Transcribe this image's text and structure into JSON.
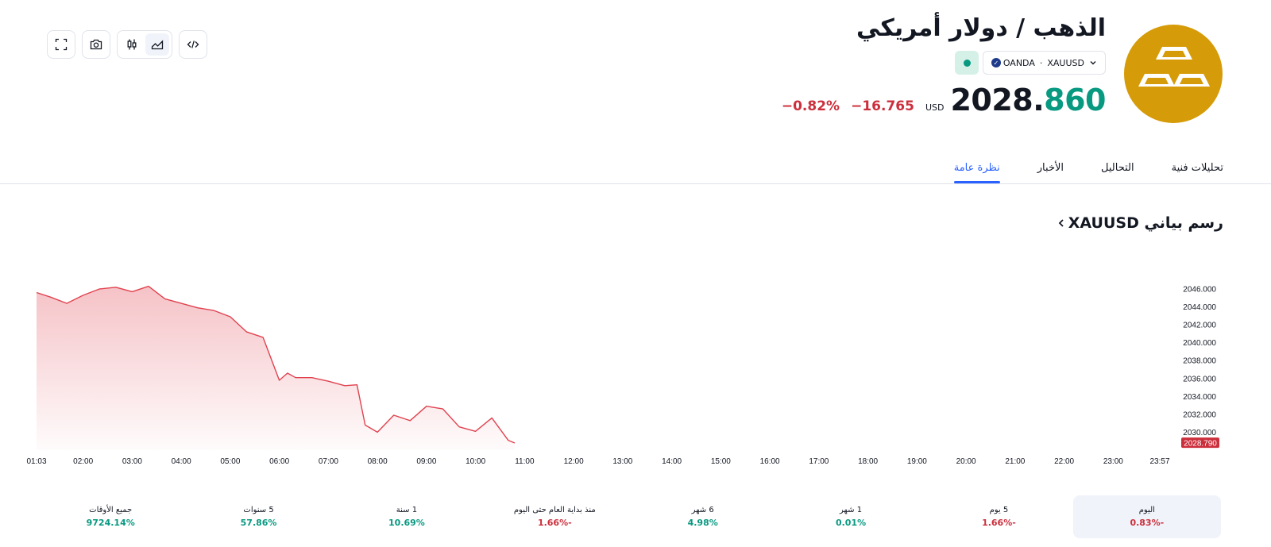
{
  "toolbar": {
    "fullscreen": "fullscreen-icon",
    "screenshot": "camera-icon",
    "candles": "candlestick-icon",
    "area": "area-chart-icon",
    "embed": "code-icon"
  },
  "header": {
    "title": "الذهب / دولار أمريكي",
    "symbol": "XAUUSD",
    "exchange": "OANDA",
    "price_int": "2028.",
    "price_frac": "860",
    "currency": "USD",
    "change_abs": "−16.765",
    "change_pct": "−0.82%",
    "logo_color": "#d69b08"
  },
  "tabs": [
    "نظرة عامة",
    "الأخبار",
    "التحاليل",
    "تحليلات فنية"
  ],
  "section": {
    "title": "رسم بياني XAUUSD"
  },
  "colors": {
    "up": "#089981",
    "down": "#cc2f3c",
    "accent": "#2962ff",
    "line": "#e0424f"
  },
  "chart_data": {
    "type": "area",
    "x_ticks": [
      "01:03",
      "02:00",
      "03:00",
      "04:00",
      "05:00",
      "06:00",
      "07:00",
      "08:00",
      "09:00",
      "10:00",
      "11:00",
      "12:00",
      "13:00",
      "14:00",
      "15:00",
      "16:00",
      "17:00",
      "18:00",
      "19:00",
      "20:00",
      "21:00",
      "22:00",
      "23:00",
      "23:57"
    ],
    "y_ticks": [
      "2046.000",
      "2044.000",
      "2042.000",
      "2040.000",
      "2038.000",
      "2036.000",
      "2034.000",
      "2032.000",
      "2030.000"
    ],
    "ylim": [
      2028.0,
      2046.8
    ],
    "last_price": "2028.790",
    "x": [
      "01:03",
      "01:20",
      "01:40",
      "02:00",
      "02:20",
      "02:40",
      "03:00",
      "03:20",
      "03:40",
      "04:00",
      "04:20",
      "04:40",
      "05:00",
      "05:20",
      "05:40",
      "06:00",
      "06:10",
      "06:20",
      "06:40",
      "07:00",
      "07:20",
      "07:35",
      "07:45",
      "08:00",
      "08:20",
      "08:40",
      "09:00",
      "09:20",
      "09:40",
      "10:00",
      "10:20",
      "10:40",
      "10:48"
    ],
    "values": [
      2045.6,
      2045.1,
      2044.4,
      2045.3,
      2046.0,
      2046.2,
      2045.7,
      2046.3,
      2044.9,
      2044.4,
      2043.9,
      2043.6,
      2042.9,
      2041.2,
      2040.6,
      2035.8,
      2036.6,
      2036.1,
      2036.1,
      2035.7,
      2035.2,
      2035.3,
      2030.8,
      2030.0,
      2031.9,
      2031.3,
      2032.9,
      2032.6,
      2030.6,
      2030.1,
      2031.6,
      2029.1,
      2028.8
    ]
  },
  "periods": [
    {
      "label": "اليوم",
      "value": "0.83%-",
      "dir": "neg"
    },
    {
      "label": "5 يوم",
      "value": "1.66%-",
      "dir": "neg"
    },
    {
      "label": "1 شهر",
      "value": "0.01%",
      "dir": "pos"
    },
    {
      "label": "6 شهر",
      "value": "4.98%",
      "dir": "pos"
    },
    {
      "label": "منذ بداية العام حتى اليوم",
      "value": "1.66%-",
      "dir": "neg"
    },
    {
      "label": "1 سنة",
      "value": "10.69%",
      "dir": "pos"
    },
    {
      "label": "5 سنوات",
      "value": "57.86%",
      "dir": "pos"
    },
    {
      "label": "جميع الأوقات",
      "value": "9724.14%",
      "dir": "pos"
    }
  ]
}
